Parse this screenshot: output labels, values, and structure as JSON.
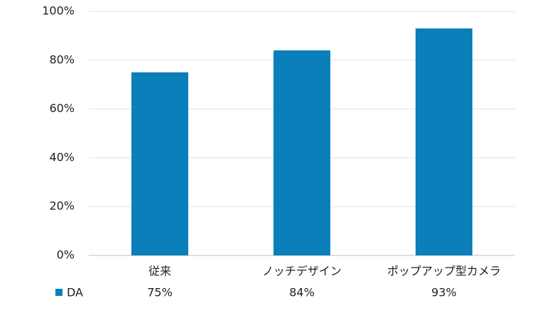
{
  "chart_data": {
    "type": "bar",
    "categories": [
      "従来",
      "ノッチデザイン",
      "ポップアップ型カメラ"
    ],
    "series": [
      {
        "name": "DA",
        "color": "#0a7fba",
        "values": [
          75,
          84,
          93
        ],
        "value_labels": [
          "75%",
          "84%",
          "93%"
        ]
      }
    ],
    "ylim": [
      0,
      100
    ],
    "yticks": [
      {
        "value": 0,
        "label": "0%"
      },
      {
        "value": 20,
        "label": "20%"
      },
      {
        "value": 40,
        "label": "40%"
      },
      {
        "value": 60,
        "label": "60%"
      },
      {
        "value": 80,
        "label": "80%"
      },
      {
        "value": 100,
        "label": "100%"
      }
    ],
    "grid": true
  }
}
